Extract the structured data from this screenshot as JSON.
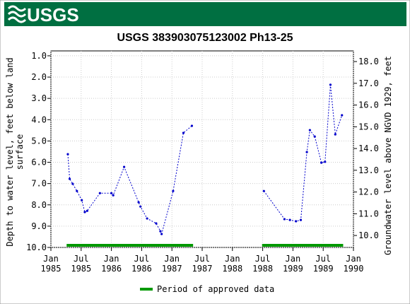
{
  "header": {
    "logo": "USGS"
  },
  "chart_data": {
    "type": "line",
    "title": "USGS 383903075123002 Ph13-25",
    "y_label": "Depth to water level, feet below land surface",
    "y2_label": "Groundwater level above NGVD 1929, feet",
    "xlim": [
      1985,
      1990
    ],
    "xticks": [
      {
        "value": 1985,
        "label": "Jan 1985"
      },
      {
        "value": 1985.5,
        "label": "Jul 1985"
      },
      {
        "value": 1986,
        "label": "Jan 1986"
      },
      {
        "value": 1986.5,
        "label": "Jul 1986"
      },
      {
        "value": 1987,
        "label": "Jan 1987"
      },
      {
        "value": 1987.5,
        "label": "Jul 1987"
      },
      {
        "value": 1988,
        "label": "Jan 1988"
      },
      {
        "value": 1988.5,
        "label": "Jul 1988"
      },
      {
        "value": 1989,
        "label": "Jan 1989"
      },
      {
        "value": 1989.5,
        "label": "Jul 1989"
      },
      {
        "value": 1990,
        "label": "Jan 1990"
      }
    ],
    "ylim": [
      10.0,
      0.77
    ],
    "yticks": [
      {
        "value": 1,
        "label": "1.0"
      },
      {
        "value": 2,
        "label": "2.0"
      },
      {
        "value": 3,
        "label": "3.0"
      },
      {
        "value": 4,
        "label": "4.0"
      },
      {
        "value": 5,
        "label": "5.0"
      },
      {
        "value": 6,
        "label": "6.0"
      },
      {
        "value": 7,
        "label": "7.0"
      },
      {
        "value": 8,
        "label": "8.0"
      },
      {
        "value": 9,
        "label": "9.0"
      },
      {
        "value": 10,
        "label": "10.0"
      }
    ],
    "y2lim": [
      9.45,
      18.49
    ],
    "y2ticks": [
      {
        "value": 10,
        "label": "10.0"
      },
      {
        "value": 11,
        "label": "11.0"
      },
      {
        "value": 12,
        "label": "12.0"
      },
      {
        "value": 13,
        "label": "13.0"
      },
      {
        "value": 14,
        "label": "14.0"
      },
      {
        "value": 15,
        "label": "15.0"
      },
      {
        "value": 16,
        "label": "16.0"
      },
      {
        "value": 17,
        "label": "17.0"
      },
      {
        "value": 18,
        "label": "18.0"
      }
    ],
    "grid": true,
    "x": [
      1985.28,
      1985.31,
      1985.36,
      1985.43,
      1985.51,
      1985.56,
      1985.6,
      1985.81,
      1986.0,
      1986.03,
      1986.21,
      1986.45,
      1986.48,
      1986.59,
      1986.74,
      1986.81,
      1986.83,
      1987.02,
      1987.19,
      1987.33,
      1988.52,
      1988.86,
      1988.95,
      1989.05,
      1989.13,
      1989.23,
      1989.28,
      1989.36,
      1989.47,
      1989.53,
      1989.62,
      1989.7,
      1989.81
    ],
    "series": [
      {
        "color": "#0000cc",
        "values": [
          5.62,
          6.78,
          7.01,
          7.35,
          7.78,
          8.34,
          8.28,
          7.45,
          7.45,
          7.55,
          6.22,
          7.88,
          8.08,
          8.64,
          8.87,
          9.24,
          9.37,
          7.35,
          4.62,
          4.29,
          7.35,
          8.67,
          8.71,
          8.77,
          8.71,
          5.52,
          4.49,
          4.79,
          6.02,
          5.98,
          2.36,
          4.69,
          3.79
        ]
      }
    ],
    "approved": {
      "name": "Period of approved data",
      "color": "#009900",
      "periods": [
        [
          1985.26,
          1987.35
        ],
        [
          1988.49,
          1989.83
        ]
      ]
    }
  }
}
